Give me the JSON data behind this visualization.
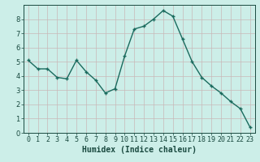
{
  "x": [
    0,
    1,
    2,
    3,
    4,
    5,
    6,
    7,
    8,
    9,
    10,
    11,
    12,
    13,
    14,
    15,
    16,
    17,
    18,
    19,
    20,
    21,
    22,
    23
  ],
  "y": [
    5.1,
    4.5,
    4.5,
    3.9,
    3.8,
    5.1,
    4.3,
    3.7,
    2.8,
    3.1,
    5.4,
    7.3,
    7.5,
    8.0,
    8.6,
    8.2,
    6.6,
    5.0,
    3.9,
    3.3,
    2.8,
    2.2,
    1.7,
    0.4
  ],
  "line_color": "#1a6b5e",
  "marker": "+",
  "xlabel": "Humidex (Indice chaleur)",
  "background_color": "#cceee8",
  "grid_color_v": "#c8b8b8",
  "grid_color_h": "#c8b8b8",
  "xlim": [
    -0.5,
    23.5
  ],
  "ylim": [
    0,
    9
  ],
  "yticks": [
    0,
    1,
    2,
    3,
    4,
    5,
    6,
    7,
    8
  ],
  "xticks": [
    0,
    1,
    2,
    3,
    4,
    5,
    6,
    7,
    8,
    9,
    10,
    11,
    12,
    13,
    14,
    15,
    16,
    17,
    18,
    19,
    20,
    21,
    22,
    23
  ],
  "tick_color": "#1a4a40",
  "axis_color": "#1a4a40",
  "xlabel_fontsize": 7.0,
  "tick_fontsize": 6.0,
  "marker_size": 3.5,
  "linewidth": 1.0
}
